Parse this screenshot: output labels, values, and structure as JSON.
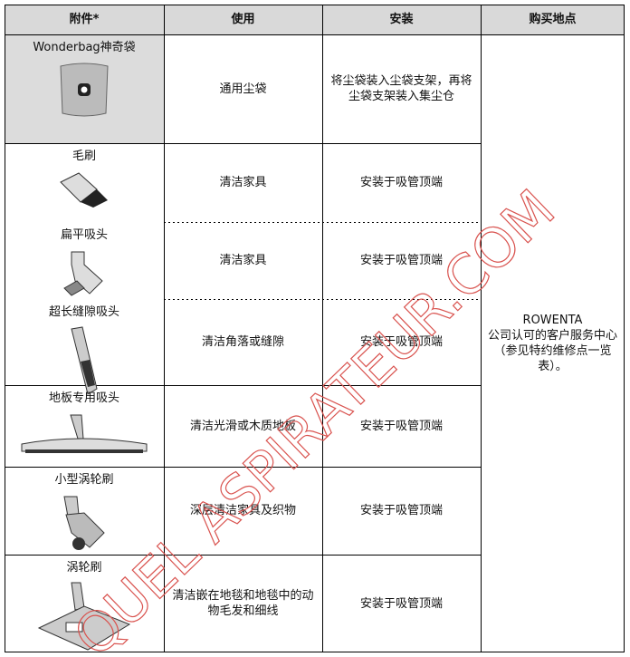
{
  "table": {
    "header": [
      "附件*",
      "使用",
      "安装",
      "购买地点"
    ],
    "rows": [
      {
        "item": "Wonderbag神奇袋",
        "use": "通用尘袋",
        "install": "将尘袋装入尘袋支架，再将尘袋支架装入集尘仓"
      },
      {
        "item": "毛刷",
        "use": "清洁家具",
        "install": "安装于吸管顶端"
      },
      {
        "item": "扁平吸头",
        "use": "清洁家具",
        "install": "安装于吸管顶端"
      },
      {
        "item": "超长缝隙吸头",
        "use": "清洁角落或缝隙",
        "install": "安装于吸管顶端"
      },
      {
        "item": "地板专用吸头",
        "use": "清洁光滑或木质地板",
        "install": "安装于吸管顶端"
      },
      {
        "item": "小型涡轮刷",
        "use": "深层清洁家具及织物",
        "install": "安装于吸管顶端"
      },
      {
        "item": "涡轮刷",
        "use": "清洁嵌在地毯和地毯中的动物毛发和细线",
        "install": "安装于吸管顶端"
      }
    ],
    "purchase": {
      "brand": "ROWENTA",
      "text": "公司认可的客户服务中心（参见特约维修点一览表）。"
    }
  },
  "watermark": "QUEL ASPIRATEUR.COM"
}
